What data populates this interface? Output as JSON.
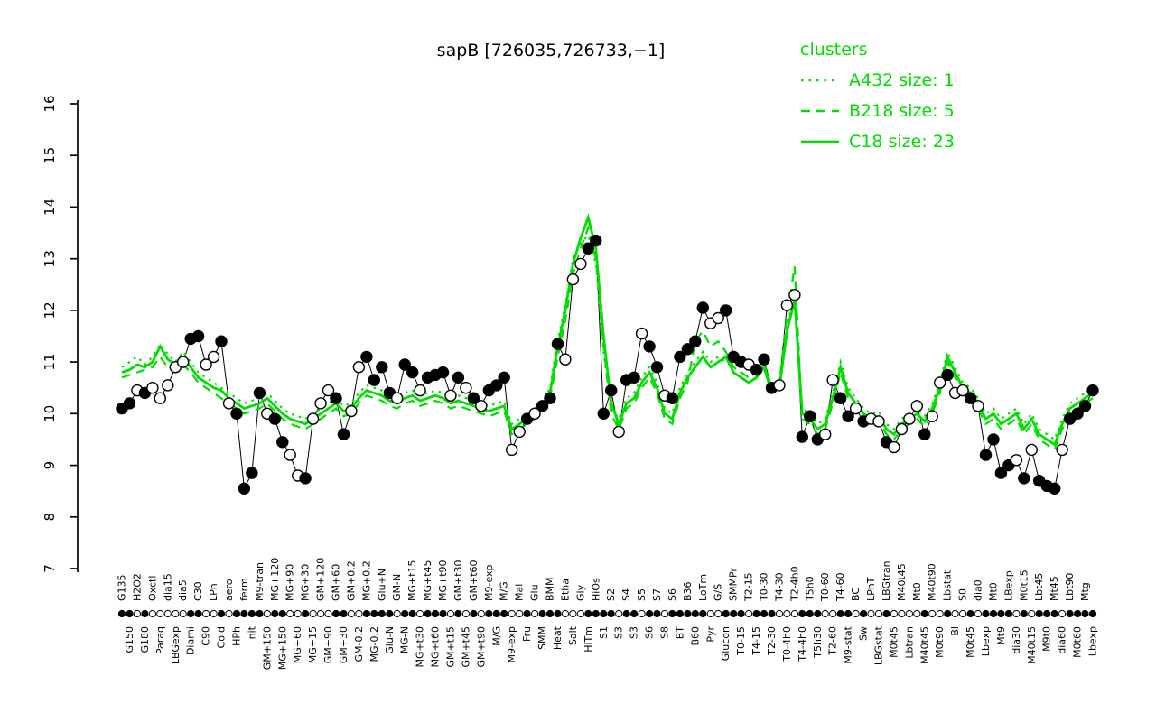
{
  "title": "sapB [726035,726733,−1]",
  "legend": {
    "heading": "clusters",
    "items": [
      {
        "label": "A432 size: 1",
        "style": "dotted"
      },
      {
        "label": "B218 size: 5",
        "style": "dashed"
      },
      {
        "label": "C18 size: 23",
        "style": "solid"
      }
    ]
  },
  "colors": {
    "cluster": "#00DE00",
    "point_fill": "#000000",
    "point_open": "#FFFFFF",
    "axis": "#000000"
  },
  "chart_data": {
    "type": "line",
    "title": "sapB [726035,726733,−1]",
    "xlabel": "",
    "ylabel": "",
    "grid": false,
    "legend_position": "top-right",
    "ylim": [
      7,
      16
    ],
    "yticks": [
      7,
      8,
      9,
      10,
      11,
      12,
      13,
      14,
      15,
      16
    ],
    "categories": [
      "G135",
      "G150",
      "H2O2",
      "G180",
      "Oxctl",
      "Paraq",
      "dia15",
      "LBGexp",
      "dia5",
      "Diami",
      "C30",
      "C90",
      "LPh",
      "Cold",
      "aero",
      "HPh",
      "ferm",
      "nit",
      "M9-tran",
      "GM+150",
      "MG+120",
      "MG+150",
      "MG+90",
      "MG+60",
      "MG+30",
      "MG+15",
      "GM+120",
      "GM+90",
      "GM+60",
      "GM+30",
      "GM+0.2",
      "GM-0.2",
      "MG+0.2",
      "MG-0.2",
      "Glu+N",
      "Glu-N",
      "GM-N",
      "MG-N",
      "MG+t15",
      "MG+t30",
      "MG+t45",
      "MG+t60",
      "MG+t90",
      "GM+t15",
      "GM+t30",
      "GM+t45",
      "GM+t60",
      "GM+t90",
      "M9-exp",
      "M/G",
      "M/G",
      "M9-exp",
      "Mal",
      "Fru",
      "Glu",
      "SMM",
      "BMM",
      "Heat",
      "Etha",
      "Salt",
      "Gly",
      "HiTm",
      "HiOs",
      "S1",
      "S2",
      "S3",
      "S4",
      "S3",
      "S5",
      "S6",
      "S7",
      "S8",
      "S6",
      "BT",
      "B36",
      "B60",
      "LoTm",
      "Pyr",
      "G/S",
      "Glucon",
      "SMMPr",
      "T0-15",
      "T2-15",
      "T4-15",
      "T0-30",
      "T2-30",
      "T4-30",
      "T0-4h0",
      "T2-4h0",
      "T4-4h0",
      "T5h0",
      "T5h30",
      "T0-60",
      "T2-60",
      "T4-60",
      "M9-stat",
      "BC",
      "Sw",
      "LPhT",
      "LBGstat",
      "LBGtran",
      "M0t45",
      "M40t45",
      "Lbtran",
      "Mt0",
      "M40t45",
      "M40t90",
      "M0t90",
      "Lbstat",
      "Bl",
      "S0",
      "M0t45",
      "dia0",
      "Lbexp",
      "Mt0",
      "Mt9",
      "LBexp",
      "dia30",
      "M0t15",
      "M40t15",
      "Lbt45",
      "M9t0",
      "Mt45",
      "dia60",
      "Lbt90",
      "M0t60",
      "Mtg",
      "Lbexp"
    ],
    "marker_filled": [
      1,
      1,
      0,
      1,
      0,
      0,
      0,
      0,
      0,
      1,
      1,
      0,
      0,
      1,
      0,
      1,
      1,
      1,
      1,
      0,
      1,
      1,
      0,
      0,
      1,
      0,
      0,
      0,
      1,
      1,
      0,
      0,
      1,
      1,
      1,
      1,
      0,
      1,
      1,
      0,
      1,
      1,
      1,
      0,
      1,
      0,
      1,
      0,
      1,
      1,
      1,
      0,
      0,
      1,
      0,
      1,
      1,
      1,
      0,
      0,
      0,
      1,
      1,
      1,
      1,
      0,
      1,
      1,
      0,
      1,
      1,
      0,
      1,
      1,
      1,
      1,
      1,
      0,
      0,
      1,
      1,
      1,
      0,
      1,
      1,
      1,
      0,
      0,
      0,
      1,
      1,
      1,
      0,
      0,
      1,
      1,
      0,
      1,
      0,
      0,
      1,
      0,
      0,
      0,
      0,
      1,
      0,
      0,
      1,
      0,
      0,
      1,
      0,
      1,
      1,
      1,
      1,
      0,
      1,
      0,
      1,
      1,
      1,
      0,
      1,
      1,
      1,
      1
    ],
    "series": [
      {
        "name": "sapB expression",
        "color": "#000000",
        "style": "points",
        "values": [
          10.1,
          10.2,
          10.45,
          10.4,
          10.5,
          10.3,
          10.55,
          10.9,
          11.0,
          11.45,
          11.5,
          10.95,
          11.1,
          11.4,
          10.2,
          10.0,
          8.55,
          8.85,
          10.4,
          10.0,
          9.9,
          9.45,
          9.2,
          8.8,
          8.75,
          9.9,
          10.2,
          10.45,
          10.3,
          9.6,
          10.05,
          10.9,
          11.1,
          10.65,
          10.9,
          10.4,
          10.3,
          10.95,
          10.8,
          10.45,
          10.7,
          10.75,
          10.8,
          10.35,
          10.7,
          10.5,
          10.3,
          10.15,
          10.45,
          10.55,
          10.7,
          9.3,
          9.65,
          9.9,
          10.0,
          10.15,
          10.3,
          11.35,
          11.05,
          12.6,
          12.9,
          13.2,
          13.35,
          10.0,
          10.45,
          9.65,
          10.65,
          10.7,
          11.55,
          11.3,
          10.9,
          10.35,
          10.3,
          11.1,
          11.25,
          11.4,
          12.05,
          11.75,
          11.85,
          12.0,
          11.1,
          11.0,
          10.95,
          10.85,
          11.05,
          10.5,
          10.55,
          12.1,
          12.3,
          9.55,
          9.95,
          9.5,
          9.6,
          10.65,
          10.3,
          9.95,
          10.1,
          9.85,
          9.9,
          9.85,
          9.45,
          9.35,
          9.7,
          9.9,
          10.15,
          9.6,
          9.95,
          10.6,
          10.75,
          10.4,
          10.45,
          10.3,
          10.15,
          9.2,
          9.5,
          8.85,
          9.0,
          9.1,
          8.75,
          9.3,
          8.7,
          8.6,
          8.55,
          9.3,
          9.9,
          10.0,
          10.15,
          10.45
        ]
      },
      {
        "name": "A432 size: 1",
        "color": "#00DE00",
        "style": "dotted",
        "values": [
          10.9,
          11.0,
          11.1,
          10.95,
          11.1,
          11.35,
          11.15,
          11.0,
          11.2,
          11.0,
          10.8,
          10.7,
          10.6,
          10.5,
          10.4,
          10.3,
          10.2,
          10.25,
          10.3,
          10.4,
          10.25,
          10.1,
          10.0,
          9.95,
          9.9,
          10.0,
          10.1,
          10.2,
          10.3,
          10.15,
          10.2,
          10.4,
          10.55,
          10.5,
          10.45,
          10.35,
          10.3,
          10.4,
          10.45,
          10.35,
          10.4,
          10.45,
          10.4,
          10.3,
          10.35,
          10.3,
          10.25,
          10.2,
          10.15,
          10.2,
          10.25,
          9.8,
          9.9,
          10.0,
          10.1,
          10.2,
          10.5,
          11.4,
          12.1,
          13.0,
          13.3,
          13.45,
          12.9,
          11.2,
          10.1,
          9.9,
          10.3,
          10.4,
          10.7,
          10.9,
          10.6,
          10.1,
          10.0,
          10.5,
          10.8,
          11.0,
          11.2,
          11.0,
          11.1,
          11.0,
          10.9,
          10.8,
          10.7,
          10.8,
          11.0,
          10.5,
          10.6,
          11.7,
          12.3,
          10.1,
          10.0,
          9.8,
          9.9,
          10.4,
          11.0,
          10.5,
          10.3,
          10.1,
          10.0,
          10.05,
          9.8,
          9.7,
          9.9,
          10.0,
          10.1,
          9.95,
          10.2,
          10.6,
          11.2,
          10.9,
          10.6,
          10.5,
          10.3,
          10.0,
          10.1,
          9.9,
          10.0,
          10.1,
          9.8,
          10.0,
          9.7,
          9.6,
          9.5,
          9.9,
          10.2,
          10.3,
          10.4,
          10.5
        ]
      },
      {
        "name": "B218 size: 5",
        "color": "#00DE00",
        "style": "dashed",
        "values": [
          10.7,
          10.75,
          10.8,
          10.85,
          10.9,
          11.1,
          10.9,
          10.8,
          10.95,
          10.8,
          10.6,
          10.5,
          10.4,
          10.3,
          10.2,
          10.1,
          10.0,
          10.05,
          10.1,
          10.2,
          10.05,
          9.9,
          9.8,
          9.75,
          9.7,
          9.8,
          9.9,
          10.0,
          10.1,
          9.95,
          10.0,
          10.2,
          10.35,
          10.3,
          10.25,
          10.15,
          10.1,
          10.2,
          10.25,
          10.15,
          10.2,
          10.25,
          10.2,
          10.1,
          10.15,
          10.1,
          10.05,
          10.0,
          9.95,
          10.0,
          10.05,
          9.6,
          9.7,
          9.8,
          9.9,
          10.0,
          10.3,
          11.1,
          11.8,
          12.7,
          13.2,
          13.6,
          13.0,
          11.3,
          10.0,
          9.7,
          10.1,
          10.2,
          10.5,
          10.7,
          10.4,
          9.9,
          9.8,
          10.3,
          10.6,
          11.4,
          11.6,
          11.3,
          11.4,
          11.2,
          10.9,
          10.8,
          10.7,
          10.8,
          11.0,
          10.5,
          10.6,
          11.9,
          12.85,
          9.9,
          9.8,
          9.6,
          9.7,
          10.2,
          10.8,
          10.3,
          10.1,
          9.9,
          9.8,
          9.85,
          9.6,
          9.5,
          9.7,
          9.8,
          9.9,
          9.75,
          10.0,
          10.4,
          11.0,
          10.7,
          10.4,
          10.3,
          10.1,
          9.8,
          9.9,
          9.7,
          9.8,
          9.9,
          9.6,
          9.8,
          9.5,
          9.4,
          9.3,
          9.7,
          10.0,
          10.1,
          10.2,
          10.3
        ]
      },
      {
        "name": "C18 size: 23",
        "color": "#00DE00",
        "style": "solid",
        "values": [
          10.8,
          10.85,
          10.95,
          10.9,
          11.0,
          11.3,
          11.05,
          10.95,
          11.1,
          10.9,
          10.7,
          10.6,
          10.5,
          10.45,
          10.3,
          10.2,
          10.1,
          10.15,
          10.2,
          10.3,
          10.15,
          10.0,
          9.9,
          9.85,
          9.8,
          9.9,
          10.0,
          10.1,
          10.2,
          10.05,
          10.1,
          10.3,
          10.45,
          10.4,
          10.35,
          10.25,
          10.2,
          10.3,
          10.35,
          10.25,
          10.3,
          10.35,
          10.3,
          10.2,
          10.25,
          10.2,
          10.15,
          10.1,
          10.05,
          10.1,
          10.15,
          9.7,
          9.8,
          9.9,
          10.0,
          10.1,
          10.4,
          11.3,
          12.0,
          12.9,
          13.4,
          13.8,
          13.2,
          11.5,
          10.2,
          9.8,
          10.2,
          10.3,
          10.6,
          10.8,
          10.5,
          10.0,
          9.9,
          10.4,
          10.7,
          10.9,
          11.1,
          10.9,
          11.0,
          11.1,
          10.8,
          10.7,
          10.6,
          10.7,
          10.9,
          10.4,
          10.5,
          11.6,
          12.2,
          10.0,
          9.9,
          9.7,
          9.8,
          10.3,
          10.9,
          10.4,
          10.2,
          10.0,
          9.9,
          9.95,
          9.7,
          9.6,
          9.8,
          9.9,
          10.0,
          9.85,
          10.1,
          10.5,
          11.1,
          10.8,
          10.5,
          10.4,
          10.2,
          9.9,
          10.0,
          9.8,
          9.9,
          10.0,
          9.7,
          9.9,
          9.6,
          9.5,
          9.4,
          9.8,
          10.1,
          10.2,
          10.3,
          10.4
        ]
      }
    ]
  }
}
